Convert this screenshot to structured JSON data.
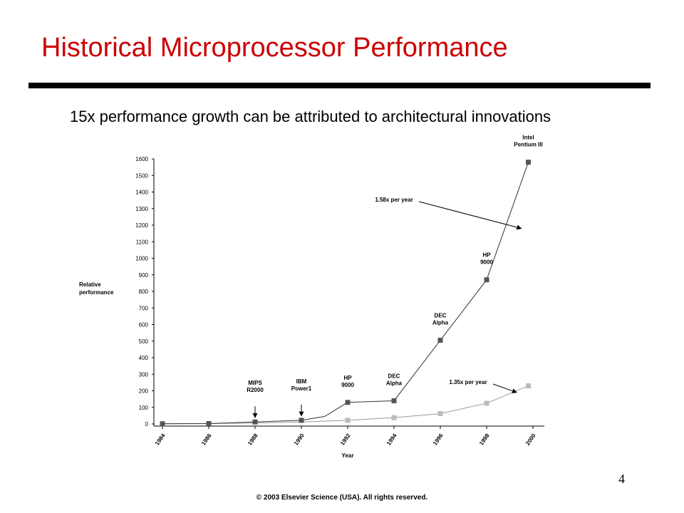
{
  "slide": {
    "title": "Historical Microprocessor Performance",
    "subtitle": "15x performance growth can be attributed to architectural innovations",
    "page_number": "4",
    "copyright": "© 2003 Elsevier Science (USA). All rights reserved."
  },
  "colors": {
    "title": "#cc0000",
    "series_top": "#555555",
    "series_bottom": "#bbbbbb"
  },
  "chart_data": {
    "type": "line",
    "title": "",
    "xlabel": "Year",
    "ylabel": "Relative performance",
    "xlim": [
      1984,
      2000
    ],
    "ylim": [
      0,
      1600
    ],
    "x_ticks": [
      "1984",
      "1986",
      "1988",
      "1990",
      "1992",
      "1994",
      "1996",
      "1998",
      "2000"
    ],
    "y_ticks": [
      "0",
      "100",
      "200",
      "300",
      "400",
      "500",
      "600",
      "700",
      "800",
      "900",
      "1000",
      "1100",
      "1200",
      "1300",
      "1400",
      "1500",
      "1600"
    ],
    "series": [
      {
        "points": [
          {
            "x": 1984,
            "y": 1
          },
          {
            "x": 1986,
            "y": 2
          },
          {
            "x": 1988,
            "y": 12
          },
          {
            "x": 1990,
            "y": 22
          },
          {
            "x": 1991,
            "y": 45
          },
          {
            "x": 1992,
            "y": 130
          },
          {
            "x": 1994,
            "y": 140
          },
          {
            "x": 1996,
            "y": 505
          },
          {
            "x": 1998,
            "y": 870
          },
          {
            "x": 1999.8,
            "y": 1580
          }
        ],
        "markers": [
          1984,
          1986,
          1988,
          1990,
          1992,
          1994,
          1996,
          1998,
          1999.8
        ]
      },
      {
        "points": [
          {
            "x": 1984,
            "y": 1
          },
          {
            "x": 1986,
            "y": 2
          },
          {
            "x": 1988,
            "y": 6
          },
          {
            "x": 1990,
            "y": 12
          },
          {
            "x": 1992,
            "y": 22
          },
          {
            "x": 1994,
            "y": 38
          },
          {
            "x": 1996,
            "y": 62
          },
          {
            "x": 1998,
            "y": 125
          },
          {
            "x": 1999.8,
            "y": 230
          }
        ],
        "markers": [
          1992,
          1994,
          1996,
          1998,
          1999.8
        ]
      }
    ],
    "point_labels": [
      {
        "lines": [
          "MIPS",
          "R2000"
        ],
        "x": 1988,
        "y": 12,
        "arrow": true
      },
      {
        "lines": [
          "IBM",
          "Power1"
        ],
        "x": 1990,
        "y": 22,
        "arrow": true
      },
      {
        "lines": [
          "HP",
          "9000"
        ],
        "x": 1992,
        "y": 130,
        "arrow": false
      },
      {
        "lines": [
          "DEC",
          "Alpha"
        ],
        "x": 1994,
        "y": 140,
        "arrow": false
      },
      {
        "lines": [
          "DEC",
          "Alpha"
        ],
        "x": 1996,
        "y": 505,
        "arrow": false
      },
      {
        "lines": [
          "HP",
          "9000"
        ],
        "x": 1998,
        "y": 870,
        "arrow": false
      },
      {
        "lines": [
          "Intel",
          "Pentium III"
        ],
        "x": 1999.8,
        "y": 1580,
        "arrow": false
      }
    ],
    "annotations": [
      {
        "text": "1.58x per year",
        "target_x": 1999.5,
        "target_y": 1180
      },
      {
        "text": "1.35x per year",
        "target_x": 1999.3,
        "target_y": 190
      }
    ]
  }
}
